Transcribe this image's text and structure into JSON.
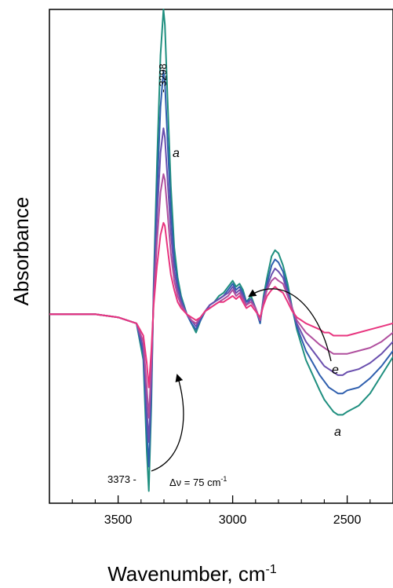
{
  "chart_data": {
    "type": "line",
    "title": "",
    "xlabel": "Wavenumber, cm",
    "xlabel_superscript": "-1",
    "ylabel": "Absorbance",
    "xlim": [
      3800,
      2300
    ],
    "x_reversed": true,
    "ylim": [
      -0.62,
      1.0
    ],
    "y_ticks_visible": false,
    "grid": false,
    "legend": "none",
    "x_ticks_major": [
      3500,
      3000,
      2500
    ],
    "x_ticks_minor": [
      3700,
      3600,
      3400,
      3300,
      3200,
      3100,
      2900,
      2800,
      2700,
      2600,
      2400
    ],
    "x_tick_labels": [
      "3500",
      "3000",
      "2500"
    ],
    "series": [
      {
        "color": "#1f8f7f",
        "x": [
          3800,
          3700,
          3600,
          3500,
          3420,
          3390,
          3375,
          3366,
          3355,
          3345,
          3330,
          3315,
          3302,
          3296,
          3285,
          3270,
          3255,
          3240,
          3225,
          3200,
          3180,
          3160,
          3140,
          3120,
          3100,
          3080,
          3060,
          3040,
          3020,
          3000,
          2985,
          2970,
          2955,
          2940,
          2920,
          2900,
          2880,
          2865,
          2850,
          2830,
          2815,
          2800,
          2780,
          2760,
          2740,
          2720,
          2700,
          2680,
          2650,
          2620,
          2600,
          2580,
          2560,
          2540,
          2520,
          2500,
          2450,
          2400,
          2350,
          2300
        ],
        "y": [
          0.0,
          0.0,
          0.0,
          -0.01,
          -0.03,
          -0.15,
          -0.45,
          -0.58,
          -0.3,
          0.1,
          0.5,
          0.85,
          1.0,
          0.95,
          0.72,
          0.42,
          0.22,
          0.12,
          0.06,
          0.0,
          -0.03,
          -0.06,
          -0.02,
          0.01,
          0.03,
          0.04,
          0.06,
          0.07,
          0.09,
          0.11,
          0.09,
          0.1,
          0.08,
          0.04,
          0.06,
          0.02,
          -0.03,
          0.06,
          0.12,
          0.19,
          0.21,
          0.2,
          0.16,
          0.1,
          0.02,
          -0.05,
          -0.1,
          -0.15,
          -0.2,
          -0.25,
          -0.28,
          -0.3,
          -0.32,
          -0.33,
          -0.33,
          -0.32,
          -0.3,
          -0.26,
          -0.2,
          -0.14
        ]
      },
      {
        "color": "#2f5fae",
        "x": [
          3800,
          3700,
          3600,
          3500,
          3420,
          3390,
          3375,
          3366,
          3355,
          3345,
          3330,
          3315,
          3302,
          3296,
          3285,
          3270,
          3255,
          3240,
          3225,
          3200,
          3180,
          3160,
          3140,
          3120,
          3100,
          3080,
          3060,
          3040,
          3020,
          3000,
          2985,
          2970,
          2955,
          2940,
          2920,
          2900,
          2880,
          2865,
          2850,
          2830,
          2815,
          2800,
          2780,
          2760,
          2740,
          2720,
          2700,
          2680,
          2650,
          2620,
          2600,
          2580,
          2560,
          2540,
          2520,
          2500,
          2450,
          2400,
          2350,
          2300
        ],
        "y": [
          0.0,
          0.0,
          0.0,
          -0.01,
          -0.03,
          -0.13,
          -0.38,
          -0.5,
          -0.26,
          0.08,
          0.4,
          0.68,
          0.8,
          0.76,
          0.58,
          0.34,
          0.18,
          0.1,
          0.05,
          0.0,
          -0.03,
          -0.05,
          -0.02,
          0.01,
          0.03,
          0.04,
          0.05,
          0.06,
          0.08,
          0.1,
          0.08,
          0.09,
          0.07,
          0.04,
          0.05,
          0.02,
          -0.03,
          0.05,
          0.1,
          0.16,
          0.18,
          0.17,
          0.14,
          0.08,
          0.02,
          -0.04,
          -0.08,
          -0.12,
          -0.16,
          -0.2,
          -0.22,
          -0.24,
          -0.25,
          -0.26,
          -0.26,
          -0.25,
          -0.24,
          -0.21,
          -0.17,
          -0.12
        ]
      },
      {
        "color": "#6a4fae",
        "x": [
          3800,
          3700,
          3600,
          3500,
          3420,
          3390,
          3375,
          3366,
          3355,
          3345,
          3330,
          3315,
          3302,
          3296,
          3285,
          3270,
          3255,
          3240,
          3225,
          3200,
          3180,
          3160,
          3140,
          3120,
          3100,
          3080,
          3060,
          3040,
          3020,
          3000,
          2985,
          2970,
          2955,
          2940,
          2920,
          2900,
          2880,
          2865,
          2850,
          2830,
          2815,
          2800,
          2780,
          2760,
          2740,
          2720,
          2700,
          2680,
          2650,
          2620,
          2600,
          2580,
          2560,
          2540,
          2520,
          2500,
          2450,
          2400,
          2350,
          2300
        ],
        "y": [
          0.0,
          0.0,
          0.0,
          -0.01,
          -0.03,
          -0.11,
          -0.31,
          -0.42,
          -0.21,
          0.06,
          0.32,
          0.53,
          0.61,
          0.58,
          0.45,
          0.27,
          0.14,
          0.08,
          0.04,
          0.0,
          -0.02,
          -0.04,
          -0.01,
          0.01,
          0.03,
          0.04,
          0.05,
          0.06,
          0.07,
          0.09,
          0.07,
          0.08,
          0.06,
          0.03,
          0.05,
          0.02,
          -0.02,
          0.05,
          0.09,
          0.13,
          0.15,
          0.14,
          0.12,
          0.07,
          0.02,
          -0.03,
          -0.06,
          -0.09,
          -0.12,
          -0.15,
          -0.17,
          -0.18,
          -0.19,
          -0.2,
          -0.2,
          -0.19,
          -0.18,
          -0.16,
          -0.13,
          -0.09
        ]
      },
      {
        "color": "#b04f9e",
        "x": [
          3800,
          3700,
          3600,
          3500,
          3420,
          3390,
          3375,
          3366,
          3355,
          3345,
          3330,
          3315,
          3302,
          3296,
          3285,
          3270,
          3255,
          3240,
          3225,
          3200,
          3180,
          3160,
          3140,
          3120,
          3100,
          3080,
          3060,
          3040,
          3020,
          3000,
          2985,
          2970,
          2955,
          2940,
          2920,
          2900,
          2880,
          2865,
          2850,
          2830,
          2815,
          2800,
          2780,
          2760,
          2740,
          2720,
          2700,
          2680,
          2650,
          2620,
          2600,
          2580,
          2560,
          2540,
          2520,
          2500,
          2450,
          2400,
          2350,
          2300
        ],
        "y": [
          0.0,
          0.0,
          0.0,
          -0.01,
          -0.03,
          -0.09,
          -0.24,
          -0.34,
          -0.17,
          0.05,
          0.24,
          0.4,
          0.46,
          0.44,
          0.34,
          0.2,
          0.11,
          0.06,
          0.03,
          0.0,
          -0.02,
          -0.03,
          -0.01,
          0.01,
          0.02,
          0.03,
          0.04,
          0.05,
          0.06,
          0.08,
          0.06,
          0.07,
          0.05,
          0.03,
          0.04,
          0.02,
          -0.02,
          0.04,
          0.08,
          0.11,
          0.12,
          0.11,
          0.1,
          0.06,
          0.02,
          -0.02,
          -0.04,
          -0.06,
          -0.08,
          -0.1,
          -0.11,
          -0.12,
          -0.13,
          -0.13,
          -0.13,
          -0.13,
          -0.12,
          -0.11,
          -0.09,
          -0.06
        ]
      },
      {
        "color": "#e8357f",
        "x": [
          3800,
          3700,
          3600,
          3500,
          3420,
          3390,
          3375,
          3366,
          3355,
          3345,
          3330,
          3315,
          3302,
          3296,
          3285,
          3270,
          3255,
          3240,
          3225,
          3200,
          3180,
          3160,
          3140,
          3120,
          3100,
          3080,
          3060,
          3040,
          3020,
          3000,
          2985,
          2970,
          2955,
          2940,
          2920,
          2900,
          2880,
          2865,
          2850,
          2830,
          2815,
          2800,
          2780,
          2760,
          2740,
          2720,
          2700,
          2680,
          2650,
          2620,
          2600,
          2580,
          2560,
          2540,
          2520,
          2500,
          2450,
          2400,
          2350,
          2300
        ],
        "y": [
          0.0,
          0.0,
          0.0,
          -0.01,
          -0.03,
          -0.07,
          -0.16,
          -0.24,
          -0.12,
          0.03,
          0.16,
          0.26,
          0.3,
          0.29,
          0.22,
          0.13,
          0.08,
          0.04,
          0.02,
          0.0,
          -0.01,
          -0.02,
          -0.01,
          0.01,
          0.02,
          0.03,
          0.04,
          0.04,
          0.05,
          0.06,
          0.05,
          0.06,
          0.04,
          0.02,
          0.03,
          0.01,
          -0.01,
          0.03,
          0.06,
          0.08,
          0.09,
          0.08,
          0.07,
          0.04,
          0.01,
          -0.01,
          -0.02,
          -0.03,
          -0.04,
          -0.05,
          -0.06,
          -0.06,
          -0.07,
          -0.07,
          -0.07,
          -0.07,
          -0.06,
          -0.05,
          -0.04,
          -0.03
        ]
      }
    ],
    "annotations": {
      "peak_top": "- 3298",
      "peak_bottom": "3373 -",
      "shift_label": "Δν = 75 cm",
      "shift_label_superscript": "-1",
      "label_a_top": "a",
      "label_a_bottom": "a",
      "label_e": "e"
    }
  }
}
